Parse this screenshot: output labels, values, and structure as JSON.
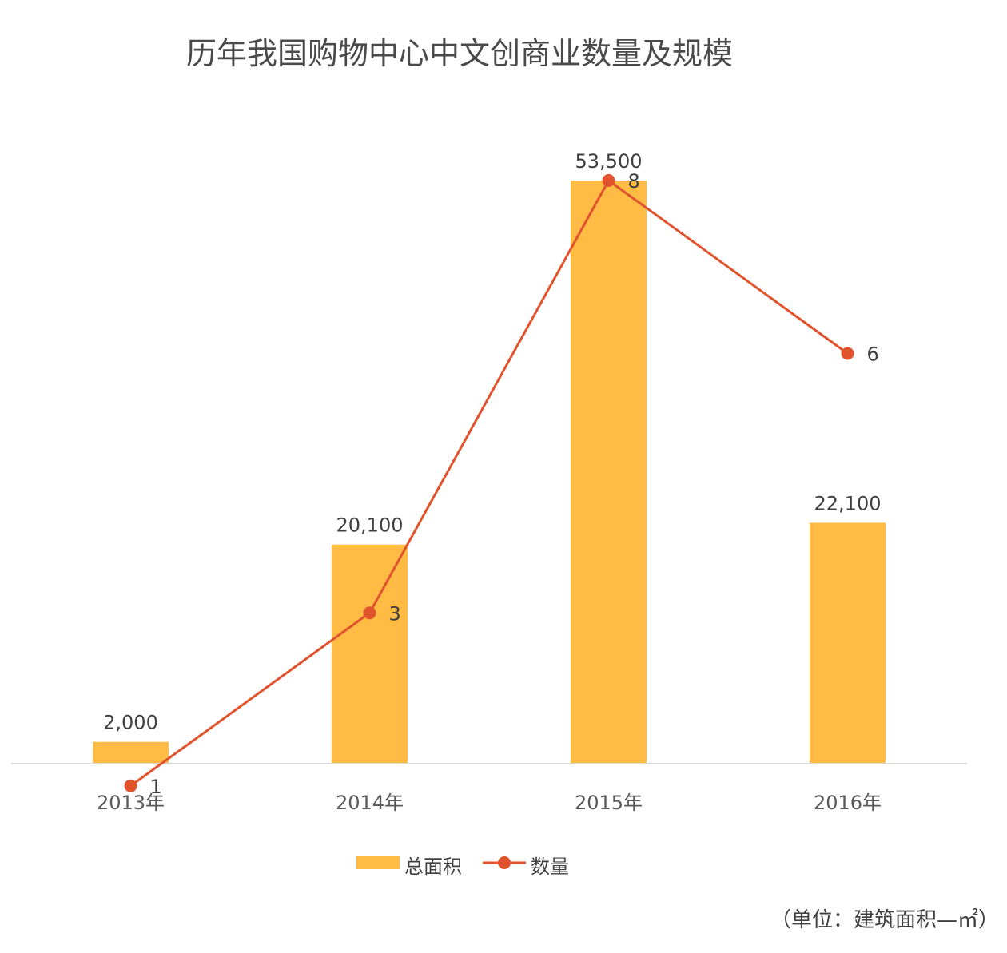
{
  "chart_data": {
    "type": "bar",
    "title": "历年我国购物中心中文创商业数量及规模",
    "categories": [
      "2013年",
      "2014年",
      "2015年",
      "2016年"
    ],
    "series": [
      {
        "name": "总面积",
        "type": "bar",
        "values": [
          2000,
          20100,
          53500,
          22100
        ],
        "labels": [
          "2,000",
          "20,100",
          "53,500",
          "22,100"
        ],
        "color": "#FFBB44"
      },
      {
        "name": "数量",
        "type": "line",
        "values": [
          1,
          3,
          8,
          6
        ],
        "labels": [
          "1",
          "3",
          "8",
          "6"
        ],
        "color": "#E0532D"
      }
    ],
    "bar_axis_range": [
      0,
      53500
    ],
    "line_axis_range": [
      0,
      8
    ],
    "grid": false,
    "legend_position": "bottom",
    "unit_note": "（单位：建筑面积—㎡）"
  }
}
